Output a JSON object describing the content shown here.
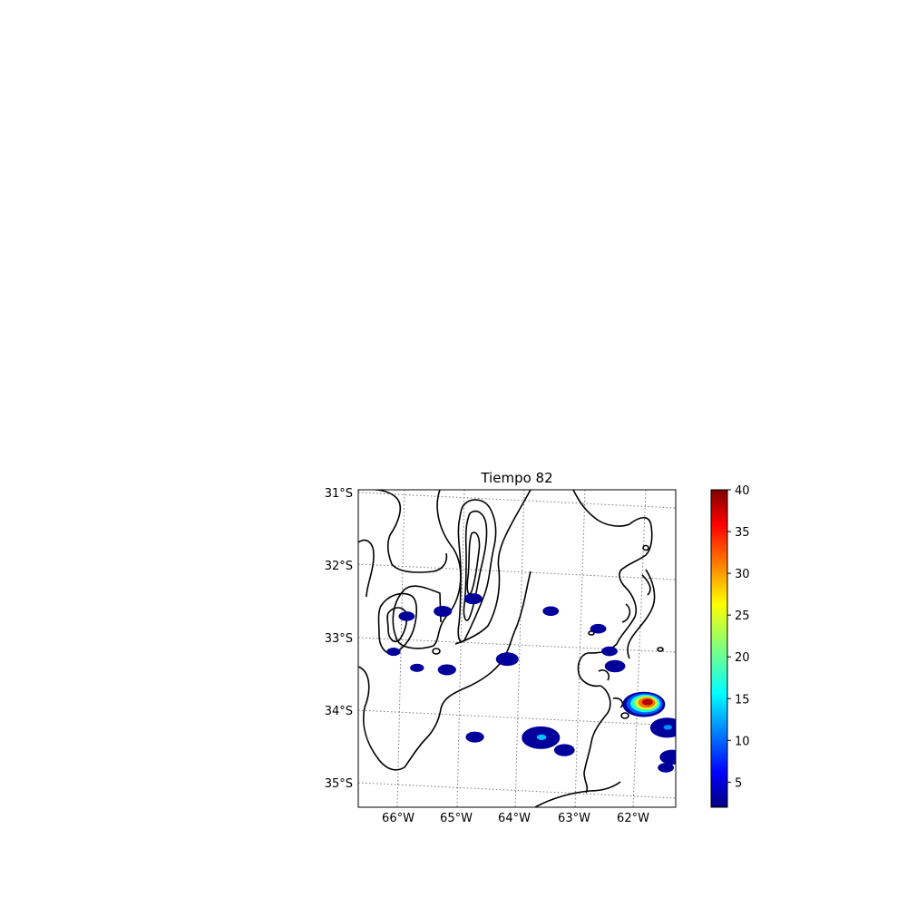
{
  "title": "Tiempo 82",
  "map": {
    "lon_ticks": [
      "66°W",
      "65°W",
      "64°W",
      "63°W",
      "62°W"
    ],
    "lat_ticks": [
      "31°S",
      "32°S",
      "33°S",
      "34°S",
      "35°S"
    ],
    "gridlines": "dotted gray",
    "contour_color": "#000000"
  },
  "colorbar": {
    "min": 2,
    "max": 40,
    "ticks": [
      "5",
      "10",
      "15",
      "20",
      "25",
      "30",
      "35",
      "40"
    ],
    "colormap": "jet"
  },
  "precip_cells": [
    {
      "lon": -61.9,
      "lat": -33.7,
      "intensity": 38
    },
    {
      "lon": -61.5,
      "lat": -34.0,
      "intensity": 12
    },
    {
      "lon": -61.4,
      "lat": -34.4,
      "intensity": 8
    },
    {
      "lon": -63.6,
      "lat": -34.25,
      "intensity": 14
    },
    {
      "lon": -63.2,
      "lat": -34.4,
      "intensity": 6
    },
    {
      "lon": -62.4,
      "lat": -33.2,
      "intensity": 6
    },
    {
      "lon": -64.2,
      "lat": -33.2,
      "intensity": 7
    },
    {
      "lon": -65.3,
      "lat": -32.6,
      "intensity": 5
    },
    {
      "lon": -64.8,
      "lat": -32.4,
      "intensity": 5
    },
    {
      "lon": -64.7,
      "lat": -34.3,
      "intensity": 5
    },
    {
      "lon": -65.2,
      "lat": -33.4,
      "intensity": 5
    },
    {
      "lon": -63.5,
      "lat": -32.5,
      "intensity": 4
    },
    {
      "lon": -62.7,
      "lat": -32.7,
      "intensity": 4
    },
    {
      "lon": -62.5,
      "lat": -33.0,
      "intensity": 4
    },
    {
      "lon": -65.9,
      "lat": -32.7,
      "intensity": 4
    },
    {
      "lon": -65.7,
      "lat": -33.4,
      "intensity": 3
    },
    {
      "lon": -66.1,
      "lat": -33.2,
      "intensity": 3
    },
    {
      "lon": -61.5,
      "lat": -34.55,
      "intensity": 4
    }
  ]
}
